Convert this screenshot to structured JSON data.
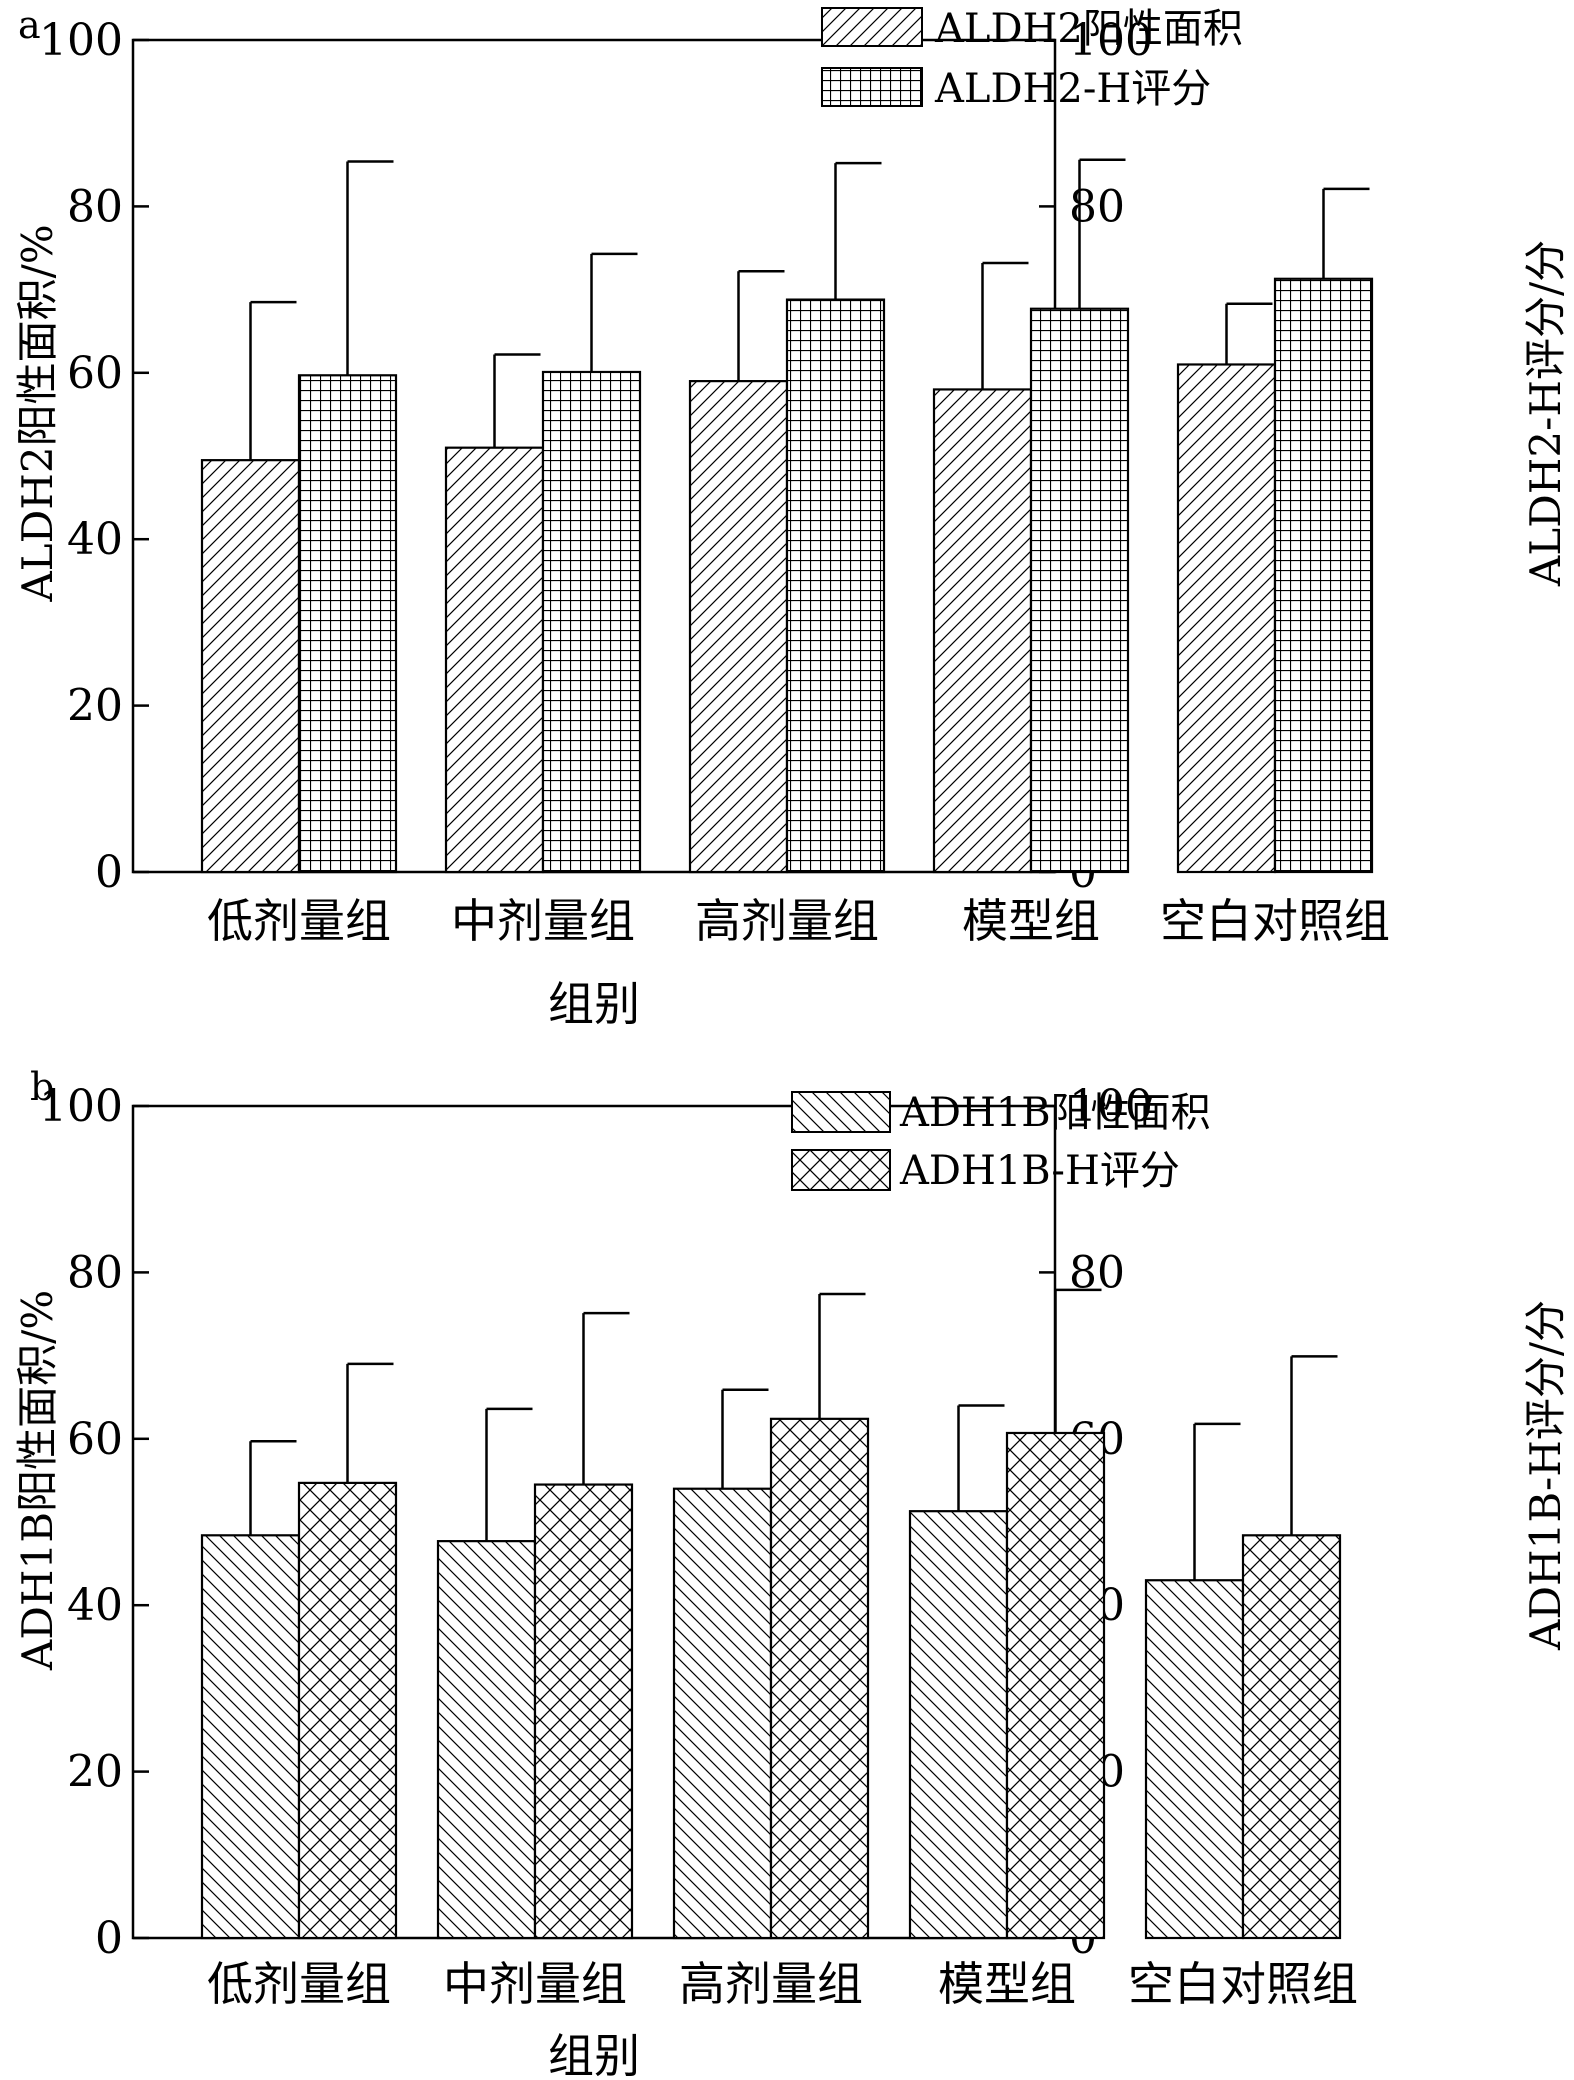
{
  "chart_data": [
    {
      "panel_label": "a",
      "type": "bar",
      "categories": [
        "低剂量组",
        "中剂量组",
        "高剂量组",
        "模型组",
        "空白对照组"
      ],
      "xlabel": "组别",
      "ylabel_left": "ALDH2阳性面积/%",
      "ylabel_right": "ALDH2-H评分/分",
      "ylim": [
        0,
        100
      ],
      "yticks": [
        "0",
        "20",
        "40",
        "60",
        "80",
        "100"
      ],
      "legend_position": "top-right",
      "grid": false,
      "series": [
        {
          "name": "ALDH2阳性面积",
          "pattern": "diag-up",
          "axis": "left",
          "values": [
            49.5,
            51,
            59,
            58,
            61
          ],
          "error": [
            19,
            11.2,
            13.2,
            15.2,
            7.3
          ]
        },
        {
          "name": "ALDH2-H评分",
          "pattern": "grid",
          "axis": "right",
          "values": [
            59.7,
            60.1,
            68.8,
            67.7,
            71.3
          ],
          "error": [
            25.7,
            14.2,
            16.4,
            17.9,
            10.8
          ]
        }
      ]
    },
    {
      "panel_label": "b",
      "type": "bar",
      "categories": [
        "低剂量组",
        "中剂量组",
        "高剂量组",
        "模型组",
        "空白对照组"
      ],
      "xlabel": "组别",
      "ylabel_left": "ADH1B阳性面积/%",
      "ylabel_right": "ADH1B-H评分/分",
      "ylim": [
        0,
        100
      ],
      "yticks": [
        "0",
        "20",
        "40",
        "60",
        "80",
        "100"
      ],
      "legend_position": "top-right",
      "grid": false,
      "series": [
        {
          "name": "ADH1B阳性面积",
          "pattern": "diag-down",
          "axis": "left",
          "values": [
            48.4,
            47.7,
            54,
            51.3,
            43
          ],
          "error": [
            11.3,
            15.9,
            11.9,
            12.7,
            18.8
          ]
        },
        {
          "name": "ADH1B-H评分",
          "pattern": "crosshatch",
          "axis": "right",
          "values": [
            54.7,
            54.5,
            62.4,
            60.7,
            48.4
          ],
          "error": [
            14.3,
            20.6,
            15,
            17.2,
            21.5
          ]
        }
      ]
    }
  ]
}
